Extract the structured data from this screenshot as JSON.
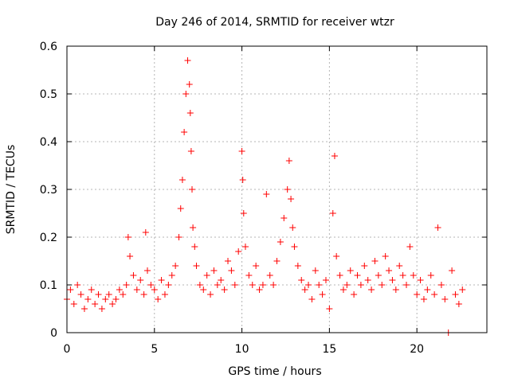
{
  "chart_data": {
    "type": "scatter",
    "title": "Day 246 of 2014, SRMTID for receiver wtzr",
    "xlabel": "GPS time / hours",
    "ylabel": "SRMTID / TECUs",
    "xlim": [
      0,
      24
    ],
    "ylim": [
      0,
      0.6
    ],
    "xticks": [
      0,
      5,
      10,
      15,
      20
    ],
    "yticks": [
      0,
      0.1,
      0.2,
      0.3,
      0.4,
      0.5,
      0.6
    ],
    "xtick_labels": [
      "0",
      "5",
      "10",
      "15",
      "20"
    ],
    "ytick_labels": [
      "0",
      "0.1",
      "0.2",
      "0.3",
      "0.4",
      "0.5",
      "0.6"
    ],
    "grid": true,
    "marker": "+",
    "series": [
      {
        "name": "SRMTID",
        "color": "#ff0000",
        "x": [
          0.0,
          0.2,
          0.4,
          0.6,
          0.8,
          1.0,
          1.2,
          1.4,
          1.6,
          1.8,
          2.0,
          2.2,
          2.4,
          2.6,
          2.8,
          3.0,
          3.2,
          3.4,
          3.5,
          3.6,
          3.8,
          4.0,
          4.2,
          4.4,
          4.5,
          4.6,
          4.8,
          5.0,
          5.2,
          5.4,
          5.6,
          5.8,
          6.0,
          6.2,
          6.4,
          6.5,
          6.6,
          6.7,
          6.8,
          6.9,
          7.0,
          7.05,
          7.1,
          7.15,
          7.2,
          7.3,
          7.4,
          7.6,
          7.8,
          8.0,
          8.2,
          8.4,
          8.6,
          8.8,
          9.0,
          9.2,
          9.4,
          9.6,
          9.8,
          10.0,
          10.05,
          10.1,
          10.2,
          10.4,
          10.6,
          10.8,
          11.0,
          11.2,
          11.4,
          11.6,
          11.8,
          12.0,
          12.2,
          12.4,
          12.6,
          12.7,
          12.8,
          12.9,
          13.0,
          13.2,
          13.4,
          13.6,
          13.8,
          14.0,
          14.2,
          14.4,
          14.6,
          14.8,
          15.0,
          15.2,
          15.3,
          15.4,
          15.6,
          15.8,
          16.0,
          16.2,
          16.4,
          16.6,
          16.8,
          17.0,
          17.2,
          17.4,
          17.6,
          17.8,
          18.0,
          18.2,
          18.4,
          18.6,
          18.8,
          19.0,
          19.2,
          19.4,
          19.6,
          19.8,
          20.0,
          20.2,
          20.4,
          20.6,
          20.8,
          21.0,
          21.2,
          21.4,
          21.6,
          21.8,
          22.0,
          22.2,
          22.4,
          22.6
        ],
        "y": [
          0.07,
          0.09,
          0.06,
          0.1,
          0.08,
          0.05,
          0.07,
          0.09,
          0.06,
          0.08,
          0.05,
          0.07,
          0.08,
          0.06,
          0.07,
          0.09,
          0.08,
          0.1,
          0.2,
          0.16,
          0.12,
          0.09,
          0.11,
          0.08,
          0.21,
          0.13,
          0.1,
          0.09,
          0.07,
          0.11,
          0.08,
          0.1,
          0.12,
          0.14,
          0.2,
          0.26,
          0.32,
          0.42,
          0.5,
          0.57,
          0.52,
          0.46,
          0.38,
          0.3,
          0.22,
          0.18,
          0.14,
          0.1,
          0.09,
          0.12,
          0.08,
          0.13,
          0.1,
          0.11,
          0.09,
          0.15,
          0.13,
          0.1,
          0.17,
          0.38,
          0.32,
          0.25,
          0.18,
          0.12,
          0.1,
          0.14,
          0.09,
          0.1,
          0.29,
          0.12,
          0.1,
          0.15,
          0.19,
          0.24,
          0.3,
          0.36,
          0.28,
          0.22,
          0.18,
          0.14,
          0.11,
          0.09,
          0.1,
          0.07,
          0.13,
          0.1,
          0.08,
          0.11,
          0.05,
          0.25,
          0.37,
          0.16,
          0.12,
          0.09,
          0.1,
          0.13,
          0.08,
          0.12,
          0.1,
          0.14,
          0.11,
          0.09,
          0.15,
          0.12,
          0.1,
          0.16,
          0.13,
          0.11,
          0.09,
          0.14,
          0.12,
          0.1,
          0.18,
          0.12,
          0.08,
          0.11,
          0.07,
          0.09,
          0.12,
          0.08,
          0.22,
          0.1,
          0.07,
          0.0,
          0.13,
          0.08,
          0.06,
          0.09
        ]
      }
    ]
  }
}
